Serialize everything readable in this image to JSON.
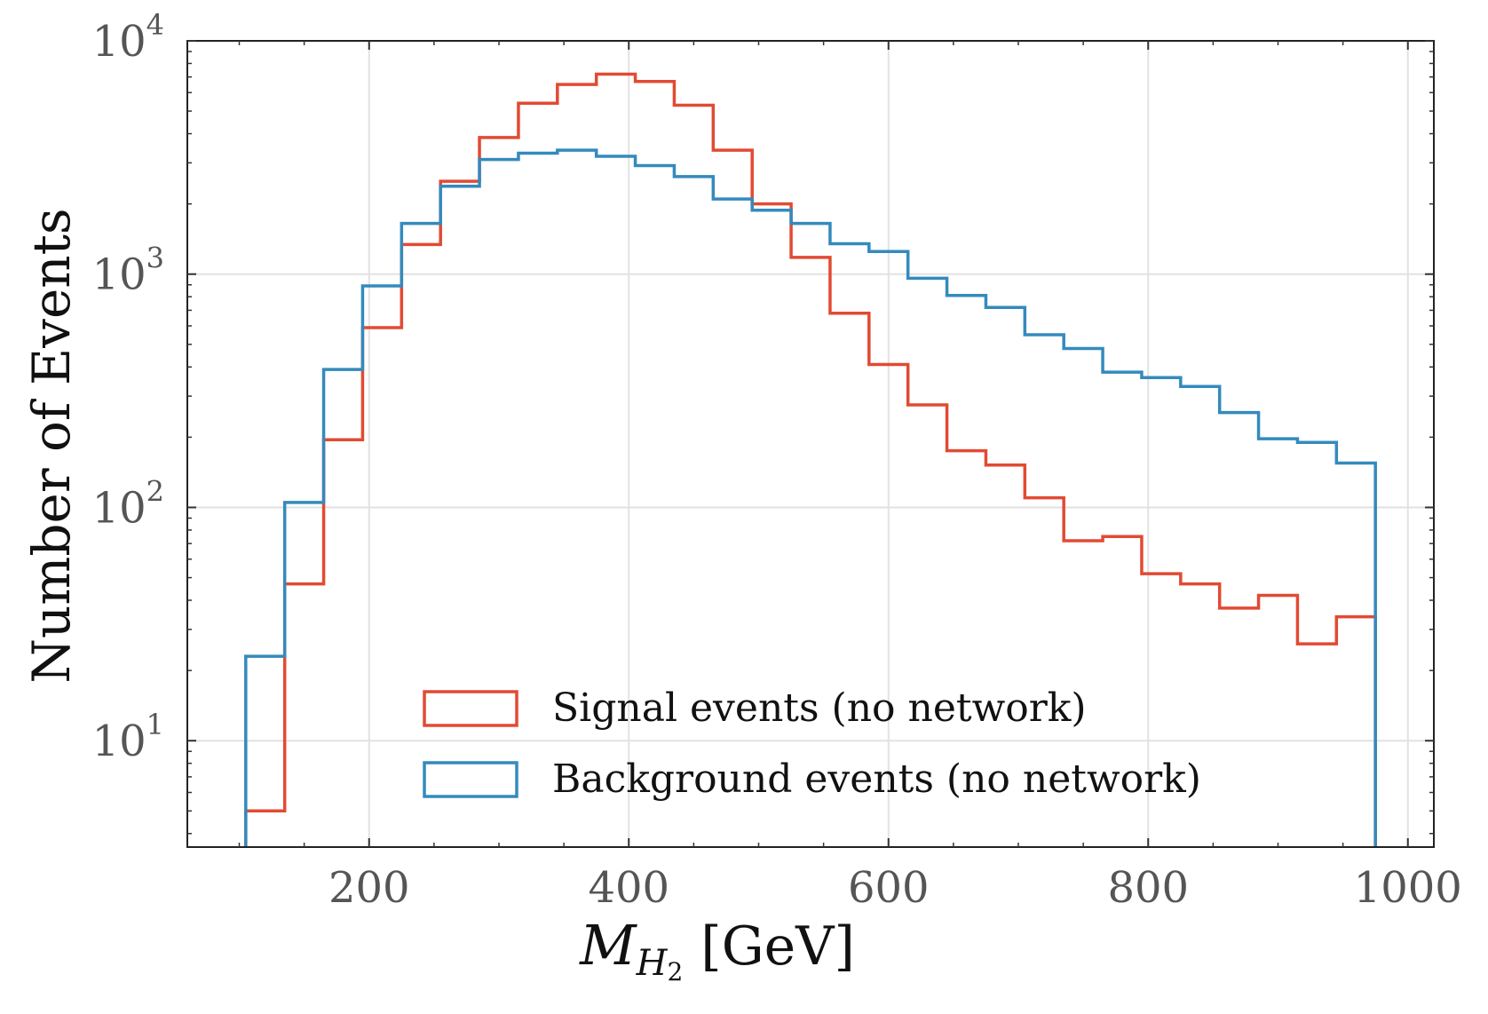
{
  "chart_data": {
    "type": "histogram",
    "scale": {
      "x": "linear",
      "y": "log"
    },
    "xlabel": {
      "symbol": "M",
      "subscript": "H",
      "sub_subscript": "2",
      "unit": "[GeV]"
    },
    "ylabel": "Number of Events",
    "xlim": [
      60,
      1020
    ],
    "ylim": [
      3.5,
      10000
    ],
    "xticks": [
      200,
      400,
      600,
      800,
      1000
    ],
    "xtick_labels": [
      "200",
      "400",
      "600",
      "800",
      "1000"
    ],
    "ytick_exponents": [
      1,
      2,
      3,
      4
    ],
    "ytick_base": "10",
    "grid": true,
    "legend_location": "lower-center",
    "bin_edges": [
      105,
      135,
      165,
      195,
      225,
      255,
      285,
      315,
      345,
      375,
      405,
      435,
      465,
      495,
      525,
      555,
      585,
      615,
      645,
      675,
      705,
      735,
      765,
      795,
      825,
      855,
      885,
      915,
      945,
      975
    ],
    "series": [
      {
        "name": "Signal events (no network)",
        "color": "#e24a33",
        "values": [
          5,
          47,
          195,
          590,
          1340,
          2500,
          3850,
          5400,
          6500,
          7200,
          6700,
          5300,
          3400,
          2000,
          1180,
          680,
          410,
          275,
          175,
          152,
          110,
          72,
          75,
          52,
          47,
          37,
          42,
          26,
          34
        ]
      },
      {
        "name": "Background events (no network)",
        "color": "#348abd",
        "values": [
          23,
          105,
          390,
          890,
          1650,
          2380,
          3100,
          3300,
          3400,
          3200,
          2920,
          2620,
          2100,
          1880,
          1650,
          1350,
          1250,
          960,
          810,
          720,
          550,
          480,
          380,
          360,
          330,
          255,
          197,
          190,
          155
        ]
      }
    ]
  }
}
